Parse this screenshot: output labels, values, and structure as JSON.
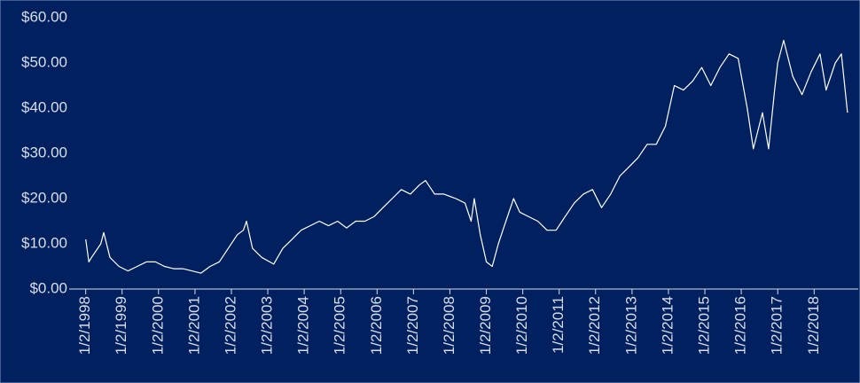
{
  "chart_data": {
    "type": "line",
    "x": [
      "1998-01-02",
      "1998-02-02",
      "1998-03-02",
      "1998-06-02",
      "1998-07-02",
      "1998-09-02",
      "1998-12-02",
      "1999-03-02",
      "1999-06-02",
      "1999-09-02",
      "1999-12-02",
      "2000-03-02",
      "2000-06-02",
      "2000-09-02",
      "2000-12-02",
      "2001-03-02",
      "2001-06-02",
      "2001-09-02",
      "2001-12-02",
      "2002-03-02",
      "2002-05-02",
      "2002-06-02",
      "2002-08-02",
      "2002-11-02",
      "2003-03-02",
      "2003-06-02",
      "2003-09-02",
      "2003-12-02",
      "2004-03-02",
      "2004-06-02",
      "2004-09-02",
      "2004-12-02",
      "2005-03-02",
      "2005-06-02",
      "2005-09-02",
      "2005-12-02",
      "2006-03-02",
      "2006-06-02",
      "2006-09-02",
      "2006-12-02",
      "2007-03-02",
      "2007-05-02",
      "2007-08-02",
      "2007-11-02",
      "2008-03-02",
      "2008-06-02",
      "2008-08-02",
      "2008-09-02",
      "2008-11-02",
      "2009-01-02",
      "2009-03-02",
      "2009-05-02",
      "2009-07-02",
      "2009-10-02",
      "2009-12-02",
      "2010-03-02",
      "2010-06-02",
      "2010-09-02",
      "2010-12-02",
      "2011-03-02",
      "2011-06-02",
      "2011-09-02",
      "2011-12-02",
      "2012-03-02",
      "2012-06-02",
      "2012-09-02",
      "2012-12-02",
      "2013-03-02",
      "2013-06-02",
      "2013-09-02",
      "2013-12-02",
      "2014-03-02",
      "2014-06-02",
      "2014-09-02",
      "2014-12-02",
      "2015-03-02",
      "2015-06-02",
      "2015-09-02",
      "2015-12-02",
      "2016-03-02",
      "2016-05-02",
      "2016-08-02",
      "2016-10-02",
      "2016-12-02",
      "2017-01-02",
      "2017-03-02",
      "2017-06-02",
      "2017-09-02",
      "2017-12-02",
      "2018-03-02",
      "2018-05-02",
      "2018-08-02",
      "2018-10-02",
      "2018-12-02"
    ],
    "values": [
      11,
      6,
      7,
      10,
      12.5,
      7,
      5,
      4,
      5,
      6,
      6,
      5,
      4.5,
      4.5,
      4,
      3.5,
      5,
      6,
      9,
      12,
      13,
      15,
      9,
      7,
      5.5,
      9,
      11,
      13,
      14,
      15,
      14,
      15,
      13.5,
      15,
      15,
      16,
      18,
      20,
      22,
      21,
      23,
      24,
      21,
      21,
      20,
      19,
      15,
      20,
      12,
      6,
      5,
      10,
      14,
      20,
      17,
      16,
      15,
      13,
      13,
      16,
      19,
      21,
      22,
      18,
      21,
      25,
      27,
      29,
      32,
      32,
      36,
      45,
      44,
      46,
      49,
      45,
      49,
      52,
      51,
      40,
      31,
      39,
      31,
      44,
      50,
      55,
      47,
      43,
      48,
      52,
      44,
      50,
      52,
      39
    ],
    "color": "#ffffff",
    "xlim": [
      "1997-07-20",
      "2019-03-20"
    ],
    "xticks": [
      {
        "value": "1998-01-02",
        "label": "1/2/1998"
      },
      {
        "value": "1999-01-02",
        "label": "1/2/1999"
      },
      {
        "value": "2000-01-02",
        "label": "1/2/2000"
      },
      {
        "value": "2001-01-02",
        "label": "1/2/2001"
      },
      {
        "value": "2002-01-02",
        "label": "1/2/2002"
      },
      {
        "value": "2003-01-02",
        "label": "1/2/2003"
      },
      {
        "value": "2004-01-02",
        "label": "1/2/2004"
      },
      {
        "value": "2005-01-02",
        "label": "1/2/2005"
      },
      {
        "value": "2006-01-02",
        "label": "1/2/2006"
      },
      {
        "value": "2007-01-02",
        "label": "1/2/2007"
      },
      {
        "value": "2008-01-02",
        "label": "1/2/2008"
      },
      {
        "value": "2009-01-02",
        "label": "1/2/2009"
      },
      {
        "value": "2010-01-02",
        "label": "1/2/2010"
      },
      {
        "value": "2011-01-02",
        "label": "1/2/2011"
      },
      {
        "value": "2012-01-02",
        "label": "1/2/2012"
      },
      {
        "value": "2013-01-02",
        "label": "1/2/2013"
      },
      {
        "value": "2014-01-02",
        "label": "1/2/2014"
      },
      {
        "value": "2015-01-02",
        "label": "1/2/2015"
      },
      {
        "value": "2016-01-02",
        "label": "1/2/2016"
      },
      {
        "value": "2017-01-02",
        "label": "1/2/2017"
      },
      {
        "value": "2018-01-02",
        "label": "1/2/2018"
      }
    ],
    "ylim": [
      0,
      60
    ],
    "yticks": [
      {
        "value": 0,
        "label": "$0.00"
      },
      {
        "value": 10,
        "label": "$10.00"
      },
      {
        "value": 20,
        "label": "$20.00"
      },
      {
        "value": 30,
        "label": "$30.00"
      },
      {
        "value": 40,
        "label": "$40.00"
      },
      {
        "value": 50,
        "label": "$50.00"
      },
      {
        "value": 60,
        "label": "$60.00"
      }
    ],
    "grid": false
  }
}
